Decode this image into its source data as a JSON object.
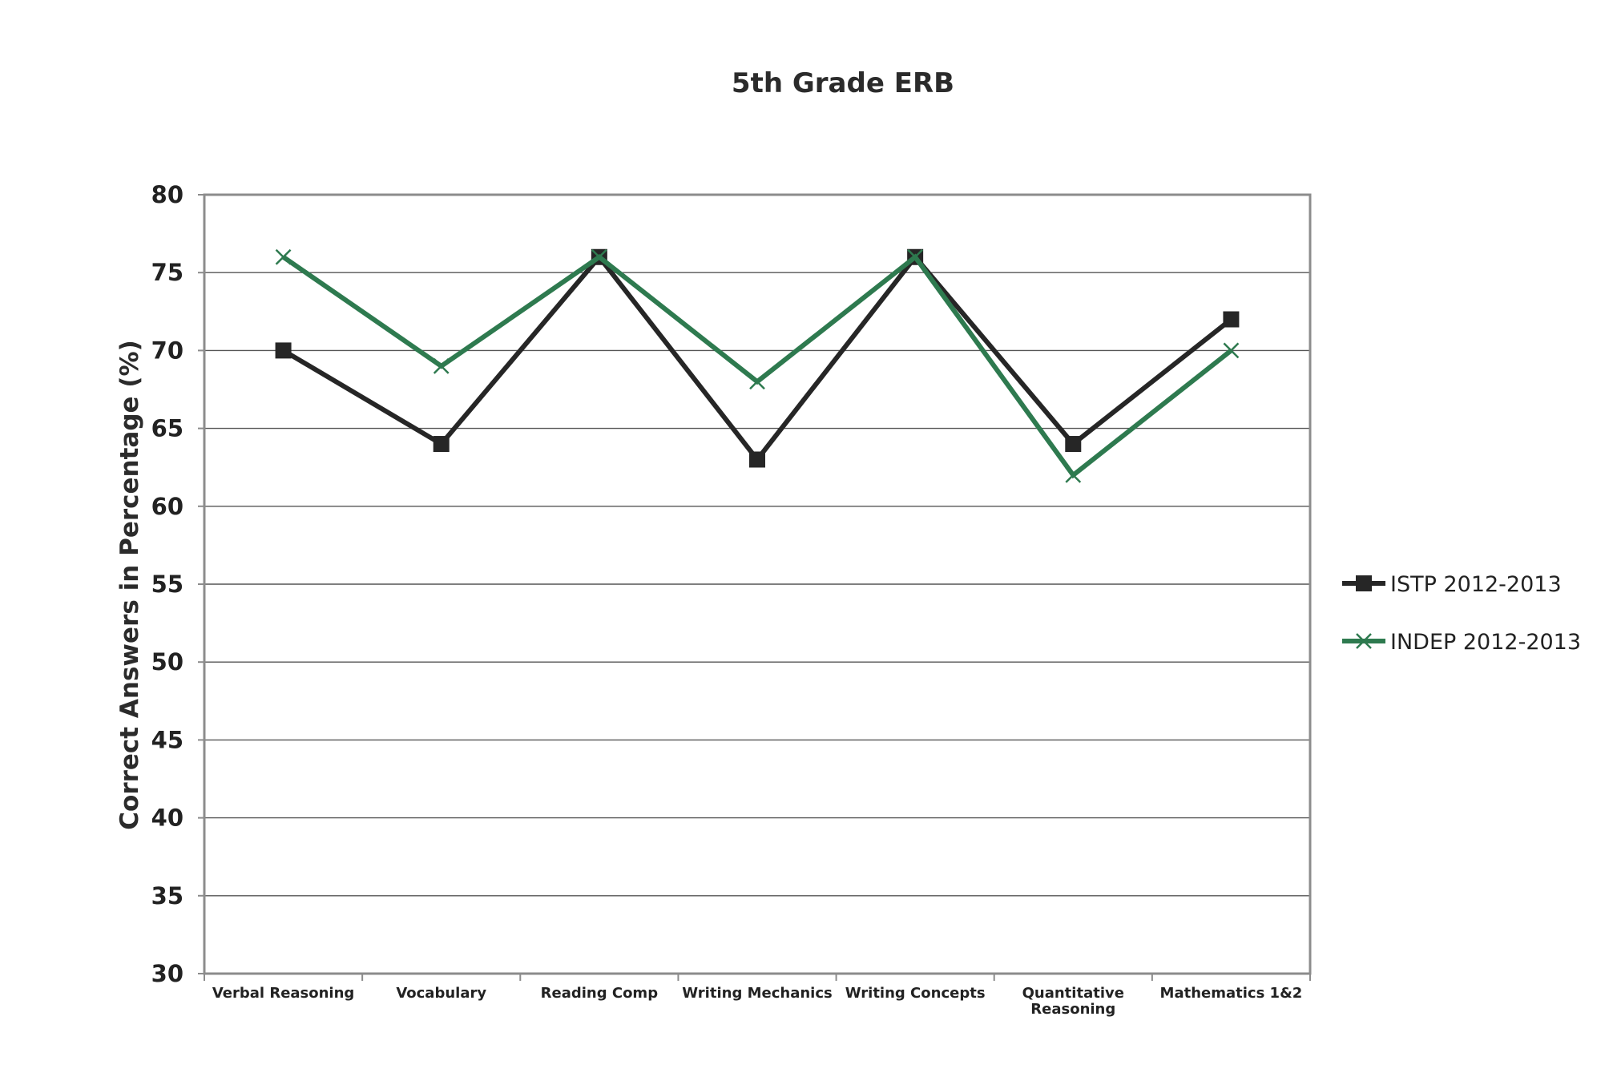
{
  "chart_data": {
    "type": "line",
    "title": "5th Grade ERB",
    "xlabel": "",
    "ylabel": "Correct Answers in Percentage (%)",
    "ylim": [
      30,
      80
    ],
    "ytick_step": 5,
    "grid": "horizontal",
    "legend_position": "right",
    "categories": [
      [
        "Verbal Reasoning"
      ],
      [
        "Vocabulary"
      ],
      [
        "Reading Comp"
      ],
      [
        "Writing Mechanics"
      ],
      [
        "Writing Concepts"
      ],
      [
        "Quantitative",
        "Reasoning"
      ],
      [
        "Mathematics 1&2"
      ]
    ],
    "series": [
      {
        "name": "ISTP 2012-2013",
        "marker": "square",
        "color": "#262626",
        "values": [
          70,
          64,
          76,
          63,
          76,
          64,
          72
        ]
      },
      {
        "name": "INDEP 2012-2013",
        "marker": "x",
        "color": "#2e7a4f",
        "values": [
          76,
          69,
          76,
          68,
          76,
          62,
          70
        ]
      }
    ]
  }
}
